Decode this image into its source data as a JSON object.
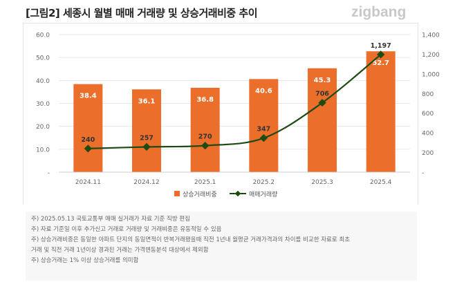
{
  "title": "[그림2] 세종시 월별 매매 거래량 및 상승거래비중 추이",
  "logo": "zigbang",
  "colors": {
    "bar": "#EB6E2B",
    "line": "#1E4A14",
    "grid": "#e6e6e6"
  },
  "chart_data": {
    "type": "bar+line",
    "categories": [
      "2024.11",
      "2024.12",
      "2025.1",
      "2025.2",
      "2025.3",
      "2025.4"
    ],
    "series": [
      {
        "name": "상승거래비중",
        "type": "bar",
        "axis": "left",
        "values": [
          38.4,
          36.1,
          36.8,
          40.6,
          45.3,
          52.7
        ]
      },
      {
        "name": "매매거래량",
        "type": "line",
        "axis": "right",
        "values": [
          240,
          257,
          270,
          347,
          706,
          1197
        ]
      }
    ],
    "left_axis": {
      "range": [
        0,
        60
      ],
      "ticks": [
        "-",
        "10.0",
        "20.0",
        "30.0",
        "40.0",
        "50.0",
        "60.0"
      ]
    },
    "right_axis": {
      "range": [
        0,
        1400
      ],
      "ticks": [
        "-",
        "200",
        "400",
        "600",
        "800",
        "1,000",
        "1,200",
        "1,400"
      ]
    },
    "bar_labels": [
      "38.4",
      "36.1",
      "36.8",
      "40.6",
      "45.3",
      "52.7"
    ],
    "line_labels": [
      "240",
      "257",
      "270",
      "347",
      "706",
      "1,197"
    ],
    "grid": true,
    "legend": "bottom"
  },
  "notes": [
    "주) 2025.05.13 국토교통부 매매 실거래가 자료 기준 직방 편집",
    "주) 자료 기준일 이후 추가신고 거래로 거래량 및 거래비중은 유동적일 수 있음",
    "주) 상승거래비중은 동일한 아파트 단지의 동일면적이 반복거래됐을때 직전 1년내 월평균 거래가격과의 차이를 비교한 자료로 최초",
    "거래 및 직전 거래 1년이상 경과된 거래는 가격변동분석 대상에서 제외함",
    "주) 상승거래는 1% 이상 상승거래를 의미함"
  ]
}
